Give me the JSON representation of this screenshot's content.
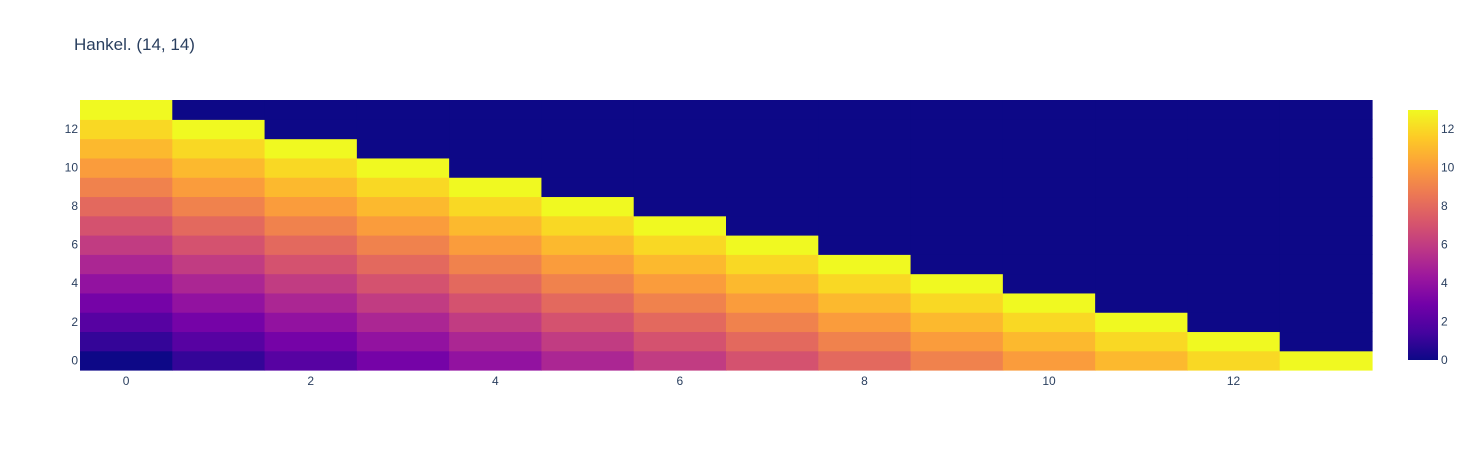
{
  "chart_data": {
    "type": "heatmap",
    "title": "Hankel. (14, 14)",
    "x": [
      0,
      1,
      2,
      3,
      4,
      5,
      6,
      7,
      8,
      9,
      10,
      11,
      12,
      13
    ],
    "y": [
      0,
      1,
      2,
      3,
      4,
      5,
      6,
      7,
      8,
      9,
      10,
      11,
      12,
      13
    ],
    "z": [
      [
        0,
        1,
        2,
        3,
        4,
        5,
        6,
        7,
        8,
        9,
        10,
        11,
        12,
        13
      ],
      [
        1,
        2,
        3,
        4,
        5,
        6,
        7,
        8,
        9,
        10,
        11,
        12,
        13,
        0
      ],
      [
        2,
        3,
        4,
        5,
        6,
        7,
        8,
        9,
        10,
        11,
        12,
        13,
        0,
        0
      ],
      [
        3,
        4,
        5,
        6,
        7,
        8,
        9,
        10,
        11,
        12,
        13,
        0,
        0,
        0
      ],
      [
        4,
        5,
        6,
        7,
        8,
        9,
        10,
        11,
        12,
        13,
        0,
        0,
        0,
        0
      ],
      [
        5,
        6,
        7,
        8,
        9,
        10,
        11,
        12,
        13,
        0,
        0,
        0,
        0,
        0
      ],
      [
        6,
        7,
        8,
        9,
        10,
        11,
        12,
        13,
        0,
        0,
        0,
        0,
        0,
        0
      ],
      [
        7,
        8,
        9,
        10,
        11,
        12,
        13,
        0,
        0,
        0,
        0,
        0,
        0,
        0
      ],
      [
        8,
        9,
        10,
        11,
        12,
        13,
        0,
        0,
        0,
        0,
        0,
        0,
        0,
        0
      ],
      [
        9,
        10,
        11,
        12,
        13,
        0,
        0,
        0,
        0,
        0,
        0,
        0,
        0,
        0
      ],
      [
        10,
        11,
        12,
        13,
        0,
        0,
        0,
        0,
        0,
        0,
        0,
        0,
        0,
        0
      ],
      [
        11,
        12,
        13,
        0,
        0,
        0,
        0,
        0,
        0,
        0,
        0,
        0,
        0,
        0
      ],
      [
        12,
        13,
        0,
        0,
        0,
        0,
        0,
        0,
        0,
        0,
        0,
        0,
        0,
        0
      ],
      [
        13,
        0,
        0,
        0,
        0,
        0,
        0,
        0,
        0,
        0,
        0,
        0,
        0,
        0
      ]
    ],
    "xticks": [
      0,
      2,
      4,
      6,
      8,
      10,
      12
    ],
    "yticks": [
      0,
      2,
      4,
      6,
      8,
      10,
      12
    ],
    "colorbar": {
      "ticks": [
        0,
        2,
        4,
        6,
        8,
        10,
        12
      ],
      "zmin": 0,
      "zmax": 13
    },
    "colorscale": [
      "#0d0887",
      "#46039f",
      "#7201a8",
      "#9c179e",
      "#bd3786",
      "#d8576b",
      "#ed7953",
      "#fb9f3a",
      "#fdca26",
      "#f0f921"
    ]
  }
}
